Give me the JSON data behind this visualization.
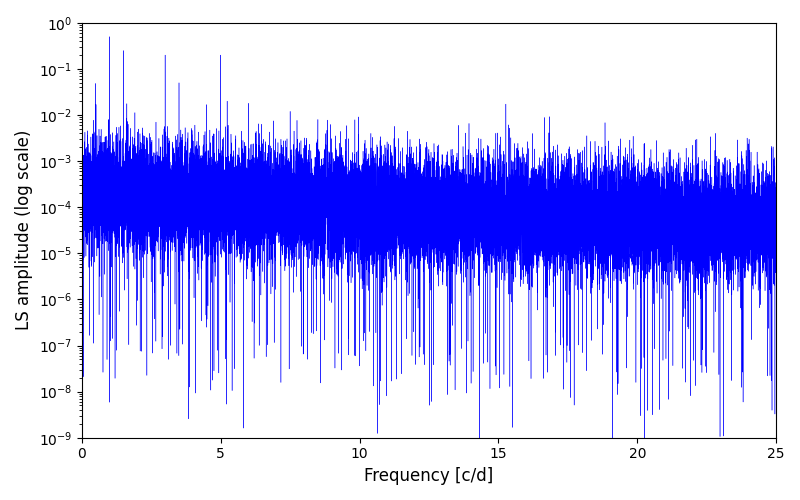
{
  "xlabel": "Frequency [c/d]",
  "ylabel": "LS amplitude (log scale)",
  "xlim": [
    0,
    25
  ],
  "ylim": [
    1e-09,
    1.0
  ],
  "line_color": "#0000ff",
  "line_width": 0.3,
  "background_color": "#ffffff",
  "xlabel_fontsize": 12,
  "ylabel_fontsize": 12,
  "tick_fontsize": 10,
  "figsize": [
    8.0,
    5.0
  ],
  "dpi": 100,
  "seed": 12345,
  "n_points": 20000,
  "freq_max": 25.0,
  "base_amplitude": 0.0002,
  "decay_rate": 0.07,
  "noise_floor": 5e-06
}
